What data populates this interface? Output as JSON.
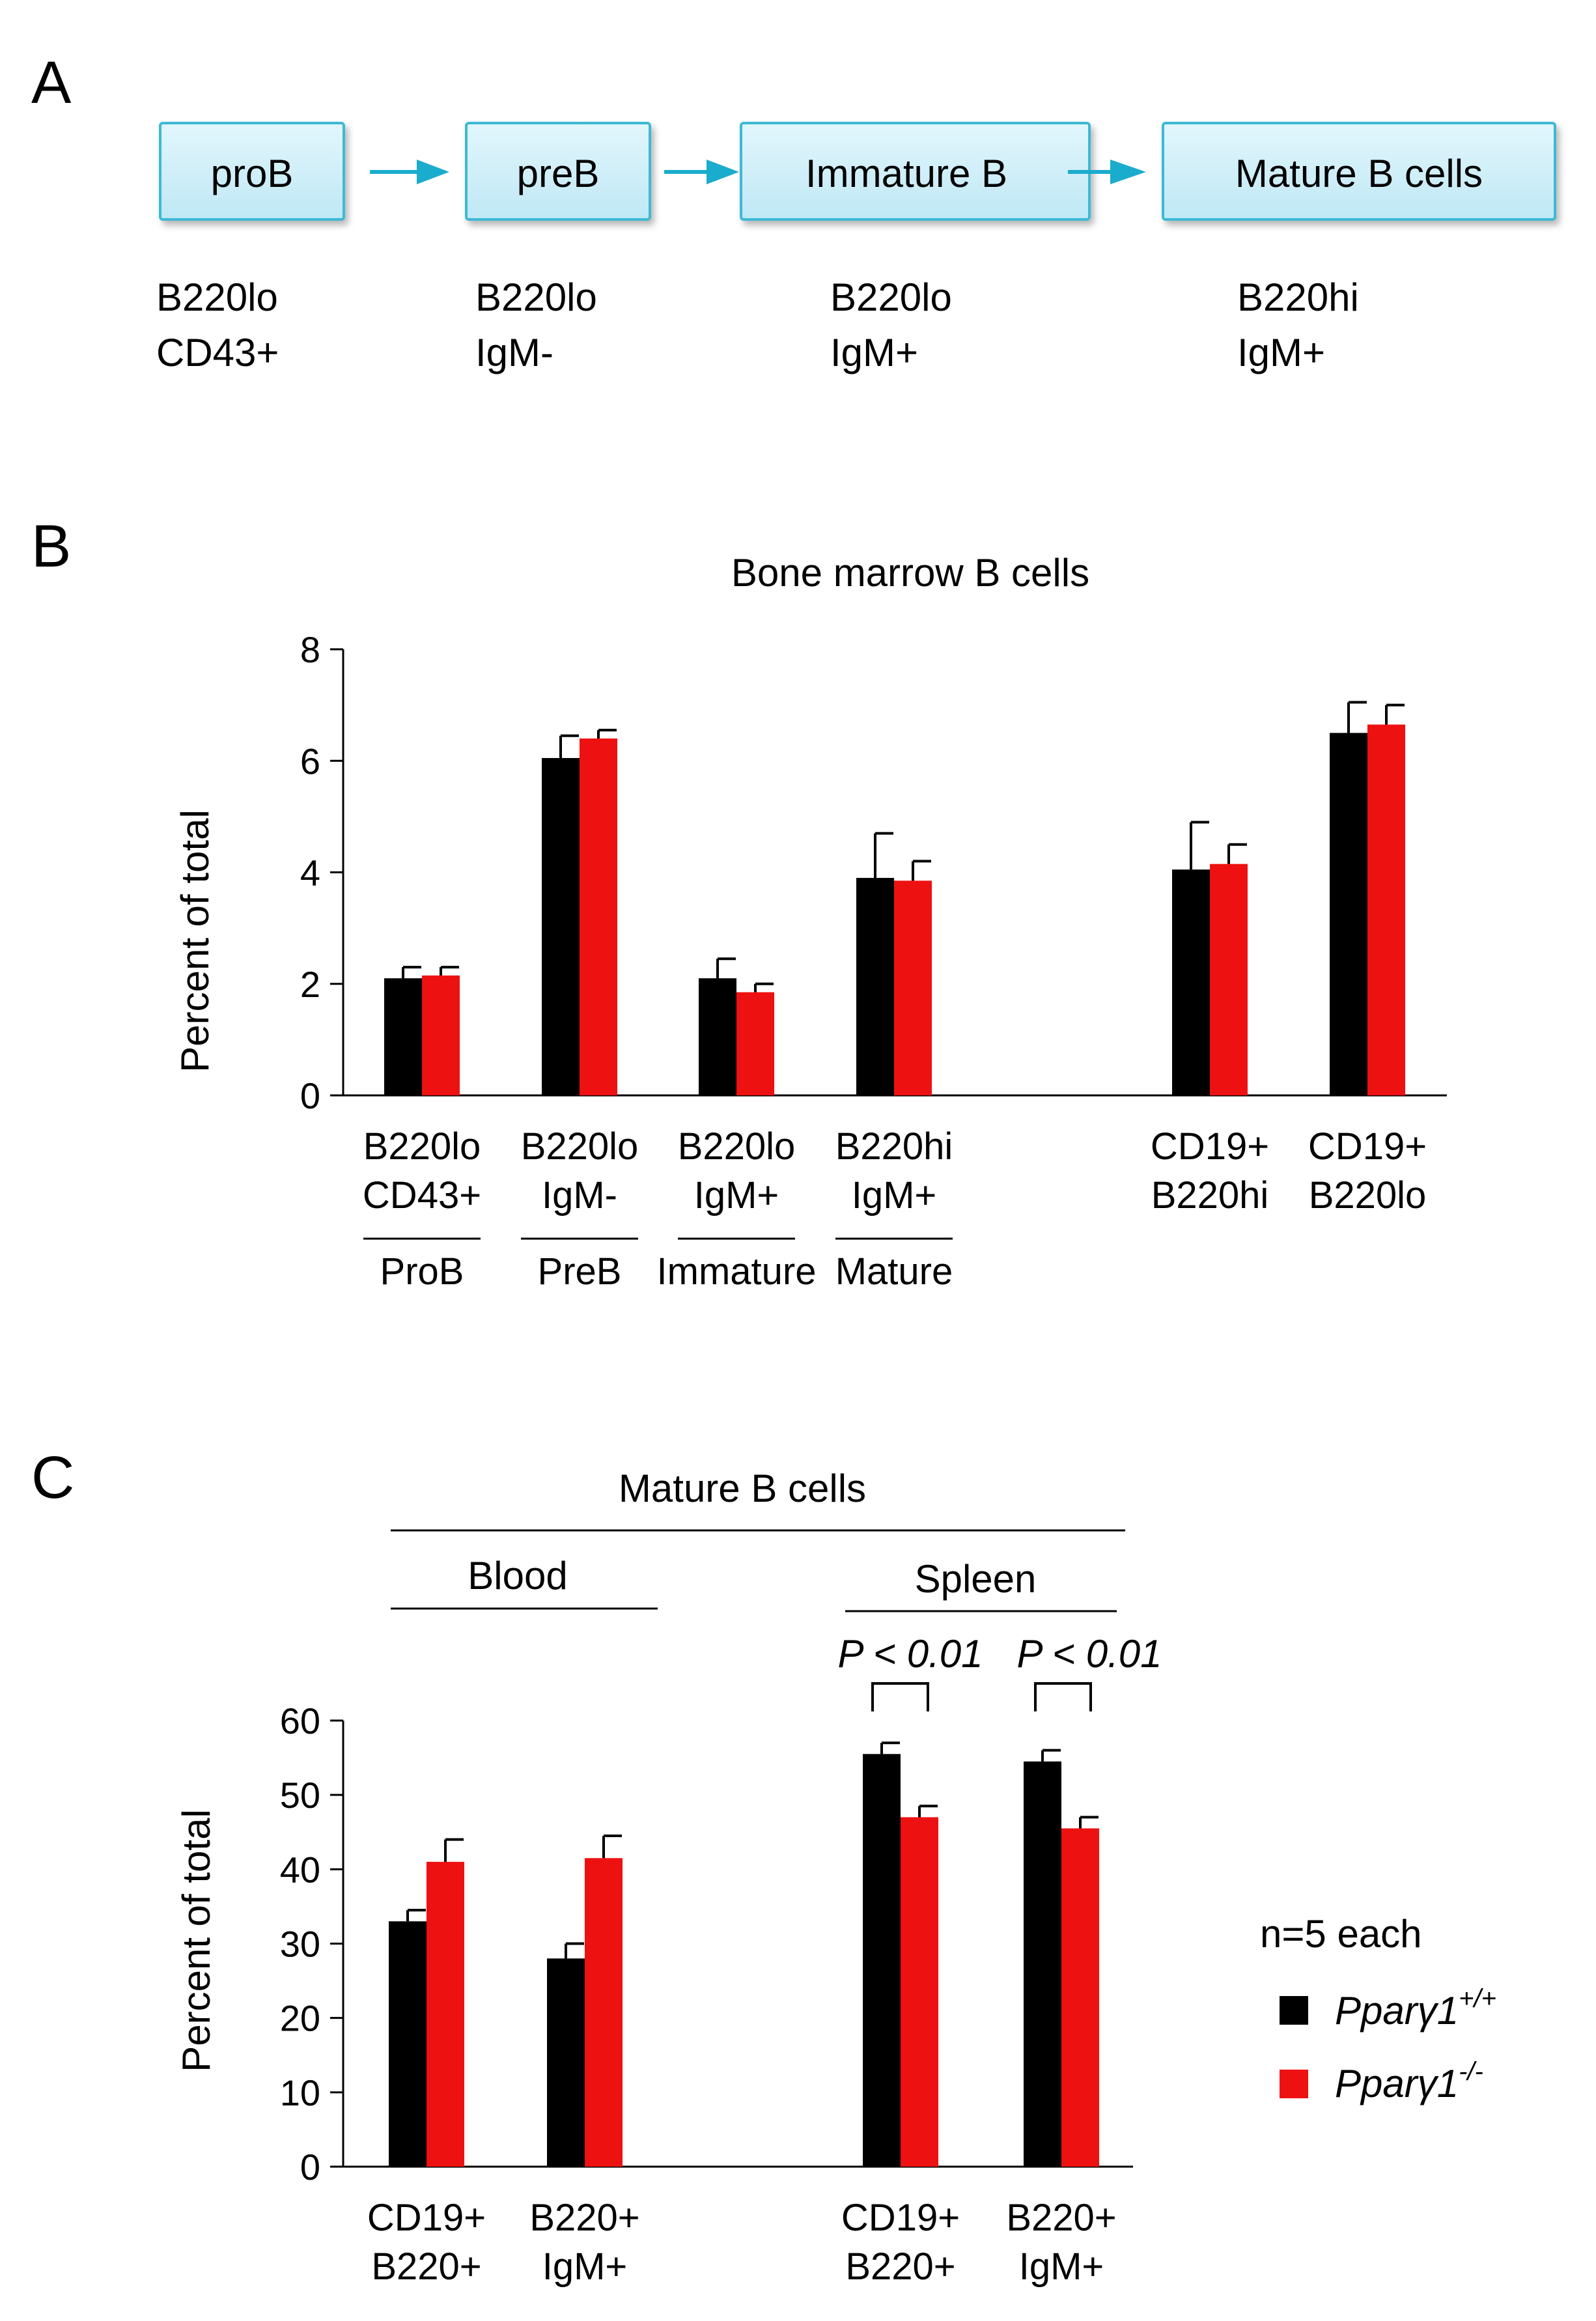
{
  "panel_a": {
    "letter": "A",
    "boxes": [
      {
        "label": "proB",
        "marker1": "B220lo",
        "marker2": "CD43+"
      },
      {
        "label": "preB",
        "marker1": "B220lo",
        "marker2": "IgM-"
      },
      {
        "label": "Immature B",
        "marker1": "B220lo",
        "marker2": "IgM+"
      },
      {
        "label": "Mature B cells",
        "marker1": "B220hi",
        "marker2": "IgM+"
      }
    ],
    "colors": {
      "box_fill": "#cdeef8",
      "box_border": "#3cb9d4",
      "arrow": "#1aaccc"
    }
  },
  "colors": {
    "wildtype": "#000000",
    "knockout": "#ee1111"
  },
  "chart_data": [
    {
      "panel": "B",
      "type": "bar",
      "title": "Bone marrow B cells",
      "xlabel": "",
      "ylabel": "Percent of total",
      "ylim": [
        0,
        8
      ],
      "yticks": [
        0,
        2,
        4,
        6,
        8
      ],
      "categories": [
        {
          "line1": "B220lo",
          "line2": "CD43+",
          "group": "ProB"
        },
        {
          "line1": "B220lo",
          "line2": "IgM-",
          "group": "PreB"
        },
        {
          "line1": "B220lo",
          "line2": "IgM+",
          "group": "Immature"
        },
        {
          "line1": "B220hi",
          "line2": "IgM+",
          "group": "Mature"
        },
        {
          "line1": "CD19+",
          "line2": "B220hi",
          "group": ""
        },
        {
          "line1": "CD19+",
          "line2": "B220lo",
          "group": ""
        }
      ],
      "series": [
        {
          "name": "Pparγ1+/+",
          "values": [
            2.1,
            6.05,
            2.1,
            3.9,
            4.05,
            6.5
          ],
          "errors": [
            0.2,
            0.4,
            0.35,
            0.8,
            0.85,
            0.55
          ]
        },
        {
          "name": "Pparγ1-/-",
          "values": [
            2.15,
            6.4,
            1.85,
            3.85,
            4.15,
            6.65
          ],
          "errors": [
            0.15,
            0.15,
            0.15,
            0.35,
            0.35,
            0.35
          ]
        }
      ]
    },
    {
      "panel": "C",
      "type": "bar",
      "title": "Mature B cells",
      "xlabel": "",
      "ylabel": "Percent of total",
      "ylim": [
        0,
        60
      ],
      "yticks": [
        0,
        10,
        20,
        30,
        40,
        50,
        60
      ],
      "tissues": [
        "Blood",
        "Spleen"
      ],
      "categories": [
        {
          "line1": "CD19+",
          "line2": "B220+",
          "tissue": "Blood"
        },
        {
          "line1": "B220+",
          "line2": "IgM+",
          "tissue": "Blood"
        },
        {
          "line1": "CD19+",
          "line2": "B220+",
          "tissue": "Spleen"
        },
        {
          "line1": "B220+",
          "line2": "IgM+",
          "tissue": "Spleen"
        }
      ],
      "series": [
        {
          "name": "Pparγ1+/+",
          "values": [
            33,
            28,
            55.5,
            54.5
          ],
          "errors": [
            1.5,
            2,
            1.5,
            1.5
          ]
        },
        {
          "name": "Pparγ1-/-",
          "values": [
            41,
            41.5,
            47,
            45.5
          ],
          "errors": [
            3,
            3,
            1.5,
            1.5
          ]
        }
      ],
      "annotations": [
        "P < 0.01",
        "P < 0.01"
      ],
      "legend": {
        "note": "n=5 each",
        "entries": [
          {
            "base": "Pparγ1",
            "sup": "+/+"
          },
          {
            "base": "Pparγ1",
            "sup": "-/-"
          }
        ]
      }
    }
  ]
}
